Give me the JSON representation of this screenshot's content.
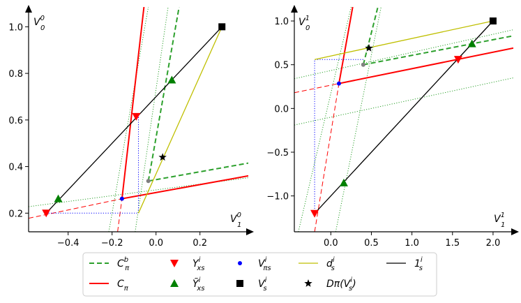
{
  "chart_data": [
    {
      "type": "line",
      "panel": "left",
      "xlabel": "V_1^0",
      "ylabel": "V_0^0",
      "xlim": [
        -0.58,
        0.42
      ],
      "ylim": [
        0.12,
        1.085
      ],
      "xticks": [
        -0.4,
        -0.2,
        0.0,
        0.2
      ],
      "xtick_labels": [
        "−0.4",
        "−0.2",
        "0.0",
        "0.2"
      ],
      "yticks": [
        0.2,
        0.4,
        0.6,
        0.8,
        1.0
      ],
      "ytick_labels": [
        "0.2",
        "0.4",
        "0.6",
        "0.8",
        "1.0"
      ],
      "lines": [
        {
          "series": "green_dotted",
          "style": "dotted",
          "color": "#2ca02c",
          "width": 1,
          "points": [
            [
              -0.58,
              0.228
            ],
            [
              0.42,
              0.352
            ]
          ]
        },
        {
          "series": "green_dotted",
          "style": "dotted",
          "color": "#2ca02c",
          "width": 1,
          "points": [
            [
              -0.215,
              0.12
            ],
            [
              -0.035,
              1.085
            ]
          ]
        },
        {
          "series": "green_dotted",
          "style": "dotted",
          "color": "#2ca02c",
          "width": 1,
          "points": [
            [
              -0.095,
              0.12
            ],
            [
              0.055,
              1.085
            ]
          ]
        },
        {
          "series": "red_dashed",
          "style": "dashed",
          "color": "#ff0000",
          "width": 1,
          "points": [
            [
              -0.58,
              0.178
            ],
            [
              -0.155,
              0.262
            ]
          ]
        },
        {
          "series": "red_dashed",
          "style": "dashed",
          "color": "#ff0000",
          "width": 1,
          "points": [
            [
              -0.175,
              0.12
            ],
            [
              -0.155,
              0.262
            ]
          ]
        },
        {
          "series": "C_pi",
          "style": "solid",
          "color": "#ff0000",
          "width": 2,
          "points": [
            [
              -0.155,
              0.262
            ],
            [
              0.42,
              0.36
            ]
          ]
        },
        {
          "series": "C_pi",
          "style": "solid",
          "color": "#ff0000",
          "width": 2,
          "points": [
            [
              -0.155,
              0.262
            ],
            [
              -0.055,
              1.085
            ]
          ]
        },
        {
          "series": "C_pi^b",
          "style": "dashed",
          "color": "#2ca02c",
          "width": 2,
          "points": [
            [
              -0.035,
              0.338
            ],
            [
              0.42,
              0.415
            ]
          ]
        },
        {
          "series": "C_pi^b",
          "style": "dashed",
          "color": "#2ca02c",
          "width": 2,
          "points": [
            [
              -0.035,
              0.338
            ],
            [
              0.105,
              1.085
            ]
          ]
        },
        {
          "series": "blue_dotted",
          "style": "dotted",
          "color": "#0000ff",
          "width": 1,
          "points": [
            [
              -0.5,
              0.2
            ],
            [
              -0.08,
              0.2
            ],
            [
              -0.08,
              0.615
            ]
          ]
        },
        {
          "series": "d_s",
          "style": "solid",
          "color": "#bfbf00",
          "width": 1.3,
          "points": [
            [
              -0.08,
              0.2
            ],
            [
              0.3,
              1.0
            ]
          ]
        },
        {
          "series": "1_s",
          "style": "solid",
          "color": "#000000",
          "width": 1.3,
          "points": [
            [
              -0.5,
              0.2
            ],
            [
              0.3,
              1.0
            ]
          ]
        }
      ],
      "points": [
        {
          "series": "V_pi_s",
          "x": -0.155,
          "y": 0.262,
          "color": "#0000ff",
          "marker": "circle"
        },
        {
          "series": "Y_xs",
          "x": -0.5,
          "y": 0.2,
          "color": "#ff0000",
          "marker": "tri-down"
        },
        {
          "series": "Y_xs",
          "x": -0.09,
          "y": 0.615,
          "color": "#ff0000",
          "marker": "tri-down"
        },
        {
          "series": "Ytilde_xs",
          "x": -0.445,
          "y": 0.262,
          "color": "#008000",
          "marker": "tri-up"
        },
        {
          "series": "Ytilde_xs",
          "x": 0.072,
          "y": 0.772,
          "color": "#008000",
          "marker": "tri-up"
        },
        {
          "series": "V_s",
          "x": 0.3,
          "y": 1.0,
          "color": "#000000",
          "marker": "square"
        },
        {
          "series": "D_pi",
          "x": 0.03,
          "y": 0.44,
          "color": "#000000",
          "marker": "star"
        },
        {
          "series": "grey",
          "x": -0.035,
          "y": 0.338,
          "color": "#808080",
          "marker": "circle"
        }
      ]
    },
    {
      "type": "line",
      "panel": "right",
      "xlabel": "V_1^1",
      "ylabel": "V_0^1",
      "xlim": [
        -0.45,
        2.25
      ],
      "ylim": [
        -1.41,
        1.16
      ],
      "xticks": [
        0.0,
        0.5,
        1.0,
        1.5,
        2.0
      ],
      "xtick_labels": [
        "0.0",
        "0.5",
        "1.0",
        "1.5",
        "2.0"
      ],
      "yticks": [
        -1.0,
        -0.5,
        0.0,
        0.5,
        1.0
      ],
      "yticks_labels_note": "",
      "ytick_labels": [
        "−1.0",
        "−0.5",
        "0.0",
        "0.5",
        "1.0"
      ],
      "lines": [
        {
          "series": "green_dotted",
          "style": "dotted",
          "color": "#2ca02c",
          "width": 1,
          "points": [
            [
              -0.45,
              0.34
            ],
            [
              2.25,
              0.9
            ]
          ]
        },
        {
          "series": "green_dotted",
          "style": "dotted",
          "color": "#2ca02c",
          "width": 1,
          "points": [
            [
              -0.45,
              -0.19
            ],
            [
              2.25,
              0.35
            ]
          ]
        },
        {
          "series": "green_dotted",
          "style": "dotted",
          "color": "#2ca02c",
          "width": 1,
          "points": [
            [
              -0.4,
              -1.41
            ],
            [
              0.25,
              1.16
            ]
          ]
        },
        {
          "series": "green_dotted",
          "style": "dotted",
          "color": "#2ca02c",
          "width": 1,
          "points": [
            [
              0.06,
              -1.41
            ],
            [
              0.62,
              1.16
            ]
          ]
        },
        {
          "series": "red_dashed",
          "style": "dashed",
          "color": "#ff0000",
          "width": 1,
          "points": [
            [
              -0.45,
              0.18
            ],
            [
              0.1,
              0.285
            ]
          ]
        },
        {
          "series": "red_dashed",
          "style": "dashed",
          "color": "#ff0000",
          "width": 1,
          "points": [
            [
              -0.2,
              -1.41
            ],
            [
              0.1,
              0.285
            ]
          ]
        },
        {
          "series": "C_pi",
          "style": "solid",
          "color": "#ff0000",
          "width": 2,
          "points": [
            [
              0.1,
              0.285
            ],
            [
              2.25,
              0.69
            ]
          ]
        },
        {
          "series": "C_pi",
          "style": "solid",
          "color": "#ff0000",
          "width": 2,
          "points": [
            [
              0.1,
              0.285
            ],
            [
              0.27,
              1.16
            ]
          ]
        },
        {
          "series": "C_pi^b",
          "style": "dashed",
          "color": "#2ca02c",
          "width": 2,
          "points": [
            [
              0.4,
              0.5
            ],
            [
              2.25,
              0.83
            ]
          ]
        },
        {
          "series": "C_pi^b",
          "style": "dashed",
          "color": "#2ca02c",
          "width": 2,
          "points": [
            [
              0.4,
              0.5
            ],
            [
              0.58,
              1.16
            ]
          ]
        },
        {
          "series": "blue_dotted",
          "style": "dotted",
          "color": "#0000ff",
          "width": 1,
          "points": [
            [
              -0.2,
              -1.2
            ],
            [
              -0.2,
              0.56
            ],
            [
              0.4,
              0.56
            ]
          ]
        },
        {
          "series": "d_s",
          "style": "solid",
          "color": "#bfbf00",
          "width": 1.3,
          "points": [
            [
              -0.2,
              0.56
            ],
            [
              2.0,
              1.0
            ]
          ]
        },
        {
          "series": "1_s",
          "style": "solid",
          "color": "#000000",
          "width": 1.3,
          "points": [
            [
              -0.2,
              -1.2
            ],
            [
              2.0,
              1.0
            ]
          ]
        }
      ],
      "points": [
        {
          "series": "V_pi_s",
          "x": 0.1,
          "y": 0.285,
          "color": "#0000ff",
          "marker": "circle"
        },
        {
          "series": "Y_xs",
          "x": -0.2,
          "y": -1.2,
          "color": "#ff0000",
          "marker": "tri-down"
        },
        {
          "series": "Y_xs",
          "x": 1.57,
          "y": 0.56,
          "color": "#ff0000",
          "marker": "tri-down"
        },
        {
          "series": "Ytilde_xs",
          "x": 0.16,
          "y": -0.85,
          "color": "#008000",
          "marker": "tri-up"
        },
        {
          "series": "Ytilde_xs",
          "x": 1.74,
          "y": 0.74,
          "color": "#008000",
          "marker": "tri-up"
        },
        {
          "series": "V_s",
          "x": 2.0,
          "y": 1.0,
          "color": "#000000",
          "marker": "square"
        },
        {
          "series": "D_pi",
          "x": 0.47,
          "y": 0.69,
          "color": "#000000",
          "marker": "star"
        },
        {
          "series": "grey",
          "x": 0.4,
          "y": 0.5,
          "color": "#808080",
          "marker": "circle"
        }
      ]
    }
  ],
  "legend": [
    {
      "id": "C_pi^b",
      "label_main": "C",
      "label_sub": "π",
      "label_sup": "b"
    },
    {
      "id": "C_pi",
      "label_main": "C",
      "label_sub": "π",
      "label_sup": ""
    },
    {
      "id": "Y_xs",
      "label_main": "Y",
      "label_sub": "xs",
      "label_sup": "i"
    },
    {
      "id": "Ytilde_xs",
      "label_main": "Ỹ",
      "label_sub": "xs",
      "label_sup": "i"
    },
    {
      "id": "V_pi_s",
      "label_main": "V",
      "label_sub": "πs",
      "label_sup": "i"
    },
    {
      "id": "V_s",
      "label_main": "V",
      "label_sub": "s",
      "label_sup": "i"
    },
    {
      "id": "d_s",
      "label_main": "d",
      "label_sub": "s",
      "label_sup": "i"
    },
    {
      "id": "D_pi",
      "label_main": "Dπ(V",
      "label_sub": "s",
      "label_sup": "i",
      "label_tail": ")"
    },
    {
      "id": "1_s",
      "label_main": "1",
      "label_sub": "s",
      "label_sup": "i"
    }
  ],
  "axis_labels": {
    "left_y_main": "V",
    "left_y_sub": "0",
    "left_y_sup": "0",
    "left_x_main": "V",
    "left_x_sub": "1",
    "left_x_sup": "0",
    "right_y_main": "V",
    "right_y_sub": "0",
    "right_y_sup": "1",
    "right_x_main": "V",
    "right_x_sub": "1",
    "right_x_sup": "1"
  },
  "colors": {
    "red": "#ff0000",
    "green": "#008000",
    "green_line": "#2ca02c",
    "blue": "#0000ff",
    "olive": "#bfbf00",
    "black": "#000000"
  }
}
